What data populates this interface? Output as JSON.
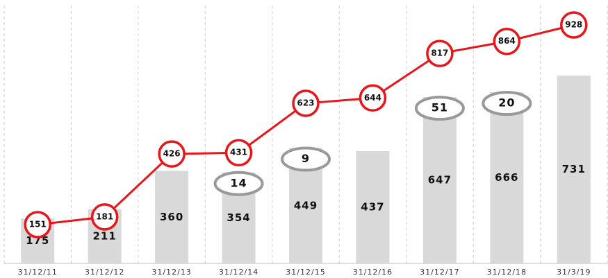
{
  "chart_data": {
    "type": "bar-line",
    "categories": [
      "31/12/11",
      "31/12/12",
      "31/12/13",
      "31/12/14",
      "31/12/15",
      "31/12/16",
      "31/12/17",
      "31/12/18",
      "31/3/19"
    ],
    "series": [
      {
        "type": "bar",
        "color": "#d9d9d9",
        "values": [
          175,
          211,
          360,
          354,
          449,
          437,
          647,
          666,
          731
        ]
      },
      {
        "type": "line",
        "color": "#e8161b",
        "values": [
          151,
          181,
          426,
          431,
          623,
          644,
          817,
          864,
          928
        ]
      }
    ],
    "annotations": [
      {
        "category": "31/12/14",
        "text": "14"
      },
      {
        "category": "31/12/15",
        "text": "9"
      },
      {
        "category": "31/12/17",
        "text": "51"
      },
      {
        "category": "31/12/18",
        "text": "20"
      }
    ]
  }
}
